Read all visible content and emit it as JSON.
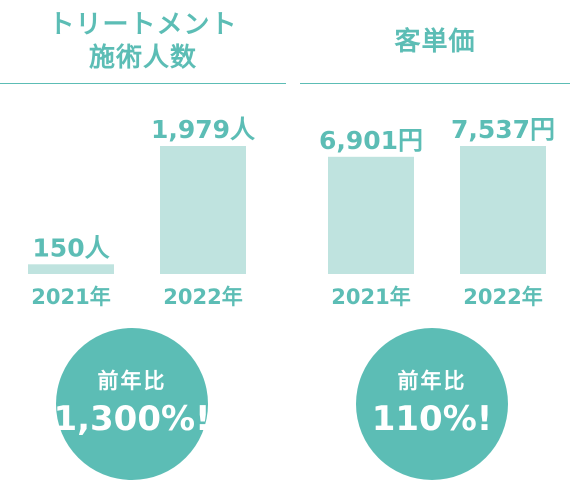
{
  "colors": {
    "accent": "#5cbdb5",
    "bar": "#bfe3df",
    "bubble_text": "#ffffff"
  },
  "chart_data": [
    {
      "type": "bar",
      "title_lines": [
        "トリートメント",
        "施術人数"
      ],
      "categories": [
        "2021年",
        "2022年"
      ],
      "values": [
        150,
        1979
      ],
      "value_labels": [
        "150人",
        "1,979人"
      ],
      "ylim": [
        0,
        1979
      ]
    },
    {
      "type": "bar",
      "title_lines": [
        "客単価"
      ],
      "categories": [
        "2021年",
        "2022年"
      ],
      "values": [
        6901,
        7537
      ],
      "value_labels": [
        "6,901円",
        "7,537円"
      ],
      "ylim": [
        0,
        7537
      ]
    }
  ],
  "bubbles": [
    {
      "label": "前年比",
      "value": "1,300%!"
    },
    {
      "label": "前年比",
      "value": "110%!"
    }
  ]
}
